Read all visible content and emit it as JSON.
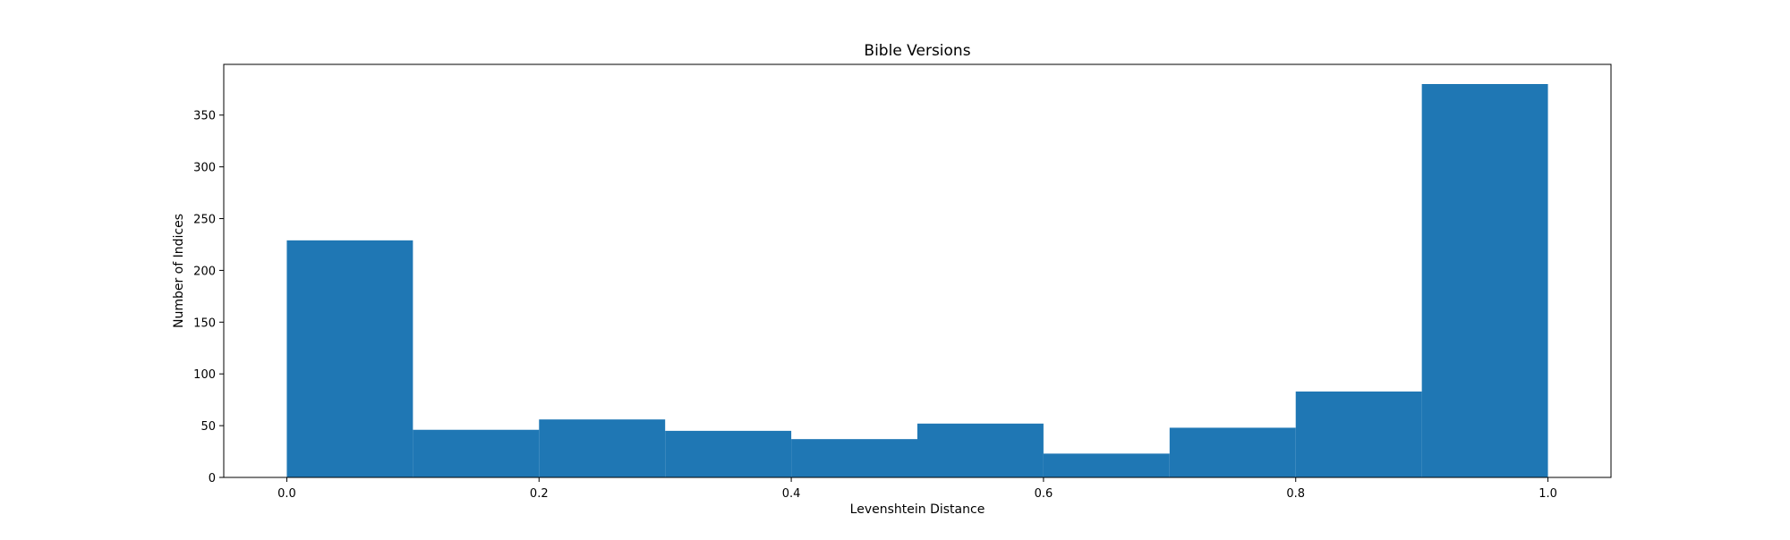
{
  "chart_data": {
    "type": "bar",
    "title": "Bible Versions",
    "xlabel": "Levenshtein Distance",
    "ylabel": "Number of Indices",
    "bin_edges": [
      0.0,
      0.1,
      0.2,
      0.3,
      0.4,
      0.5,
      0.6,
      0.7,
      0.8,
      0.9,
      1.0
    ],
    "values": [
      229,
      46,
      56,
      45,
      37,
      52,
      23,
      48,
      83,
      380
    ],
    "xlim": [
      -0.05,
      1.05
    ],
    "ylim": [
      0,
      399
    ],
    "x_ticks": [
      0.0,
      0.2,
      0.4,
      0.6,
      0.8,
      1.0
    ],
    "x_tick_labels": [
      "0.0",
      "0.2",
      "0.4",
      "0.6",
      "0.8",
      "1.0"
    ],
    "y_ticks": [
      0,
      50,
      100,
      150,
      200,
      250,
      300,
      350
    ],
    "y_tick_labels": [
      "0",
      "50",
      "100",
      "150",
      "200",
      "250",
      "300",
      "350"
    ],
    "grid": false,
    "legend": "none",
    "bar_color": "#1f77b4"
  }
}
